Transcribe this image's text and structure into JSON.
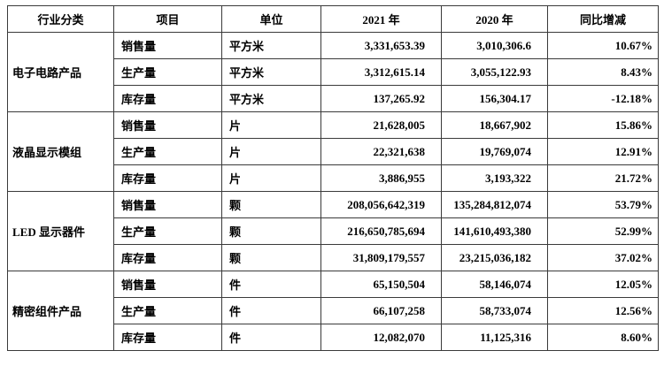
{
  "table": {
    "headers": [
      "行业分类",
      "项目",
      "单位",
      "2021 年",
      "2020 年",
      "同比增减"
    ],
    "groups": [
      {
        "category": "电子电路产品",
        "rows": [
          {
            "item": "销售量",
            "unit": "平方米",
            "y2021": "3,331,653.39",
            "y2020": "3,010,306.6",
            "change": "10.67%"
          },
          {
            "item": "生产量",
            "unit": "平方米",
            "y2021": "3,312,615.14",
            "y2020": "3,055,122.93",
            "change": "8.43%"
          },
          {
            "item": "库存量",
            "unit": "平方米",
            "y2021": "137,265.92",
            "y2020": "156,304.17",
            "change": "-12.18%"
          }
        ]
      },
      {
        "category": "液晶显示模组",
        "rows": [
          {
            "item": "销售量",
            "unit": "片",
            "y2021": "21,628,005",
            "y2020": "18,667,902",
            "change": "15.86%"
          },
          {
            "item": "生产量",
            "unit": "片",
            "y2021": "22,321,638",
            "y2020": "19,769,074",
            "change": "12.91%"
          },
          {
            "item": "库存量",
            "unit": "片",
            "y2021": "3,886,955",
            "y2020": "3,193,322",
            "change": "21.72%"
          }
        ]
      },
      {
        "category": "LED 显示器件",
        "rows": [
          {
            "item": "销售量",
            "unit": "颗",
            "y2021": "208,056,642,319",
            "y2020": "135,284,812,074",
            "change": "53.79%"
          },
          {
            "item": "生产量",
            "unit": "颗",
            "y2021": "216,650,785,694",
            "y2020": "141,610,493,380",
            "change": "52.99%"
          },
          {
            "item": "库存量",
            "unit": "颗",
            "y2021": "31,809,179,557",
            "y2020": "23,215,036,182",
            "change": "37.02%"
          }
        ]
      },
      {
        "category": "精密组件产品",
        "rows": [
          {
            "item": "销售量",
            "unit": "件",
            "y2021": "65,150,504",
            "y2020": "58,146,074",
            "change": "12.05%"
          },
          {
            "item": "生产量",
            "unit": "件",
            "y2021": "66,107,258",
            "y2020": "58,733,074",
            "change": "12.56%"
          },
          {
            "item": "库存量",
            "unit": "件",
            "y2021": "12,082,070",
            "y2020": "11,125,316",
            "change": "8.60%"
          }
        ]
      }
    ]
  }
}
